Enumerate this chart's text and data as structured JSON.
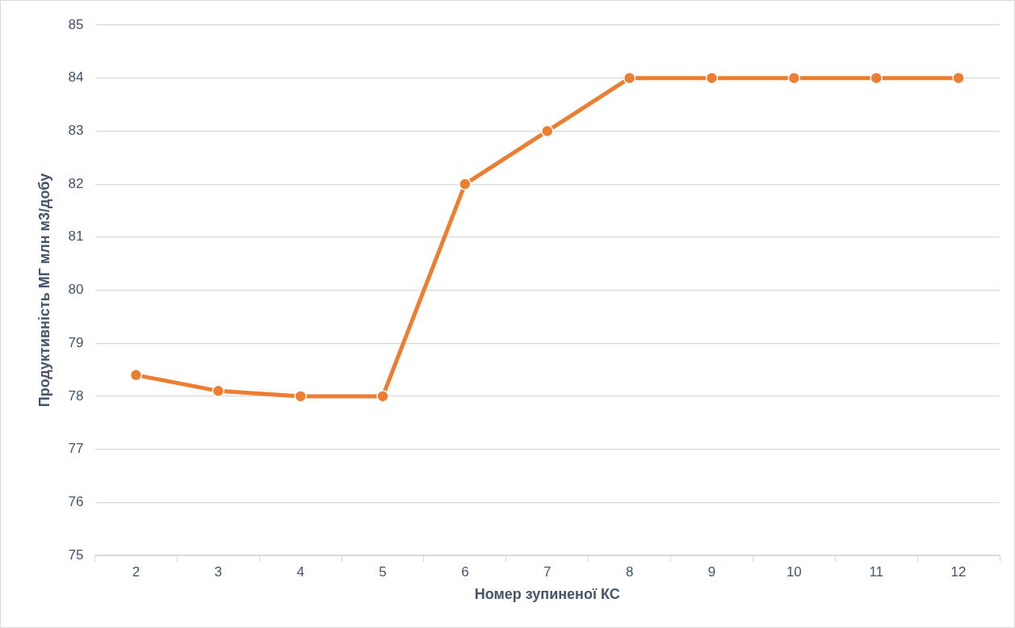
{
  "chart_data": {
    "type": "line",
    "xlabel": "Номер зупиненої КС",
    "ylabel": "Продуктивність МГ млн м3/добу",
    "categories": [
      "2",
      "3",
      "4",
      "5",
      "6",
      "7",
      "8",
      "9",
      "10",
      "11",
      "12"
    ],
    "series": [
      {
        "color": "#ed7d31",
        "values": [
          78.4,
          78.1,
          78,
          78,
          82,
          83,
          84,
          84,
          84,
          84,
          84
        ]
      }
    ],
    "ylim": [
      75,
      85
    ],
    "yticks": [
      75,
      76,
      77,
      78,
      79,
      80,
      81,
      82,
      83,
      84,
      85
    ],
    "grid": "y",
    "legend": false,
    "marker": "circle",
    "line_style": "solid"
  }
}
